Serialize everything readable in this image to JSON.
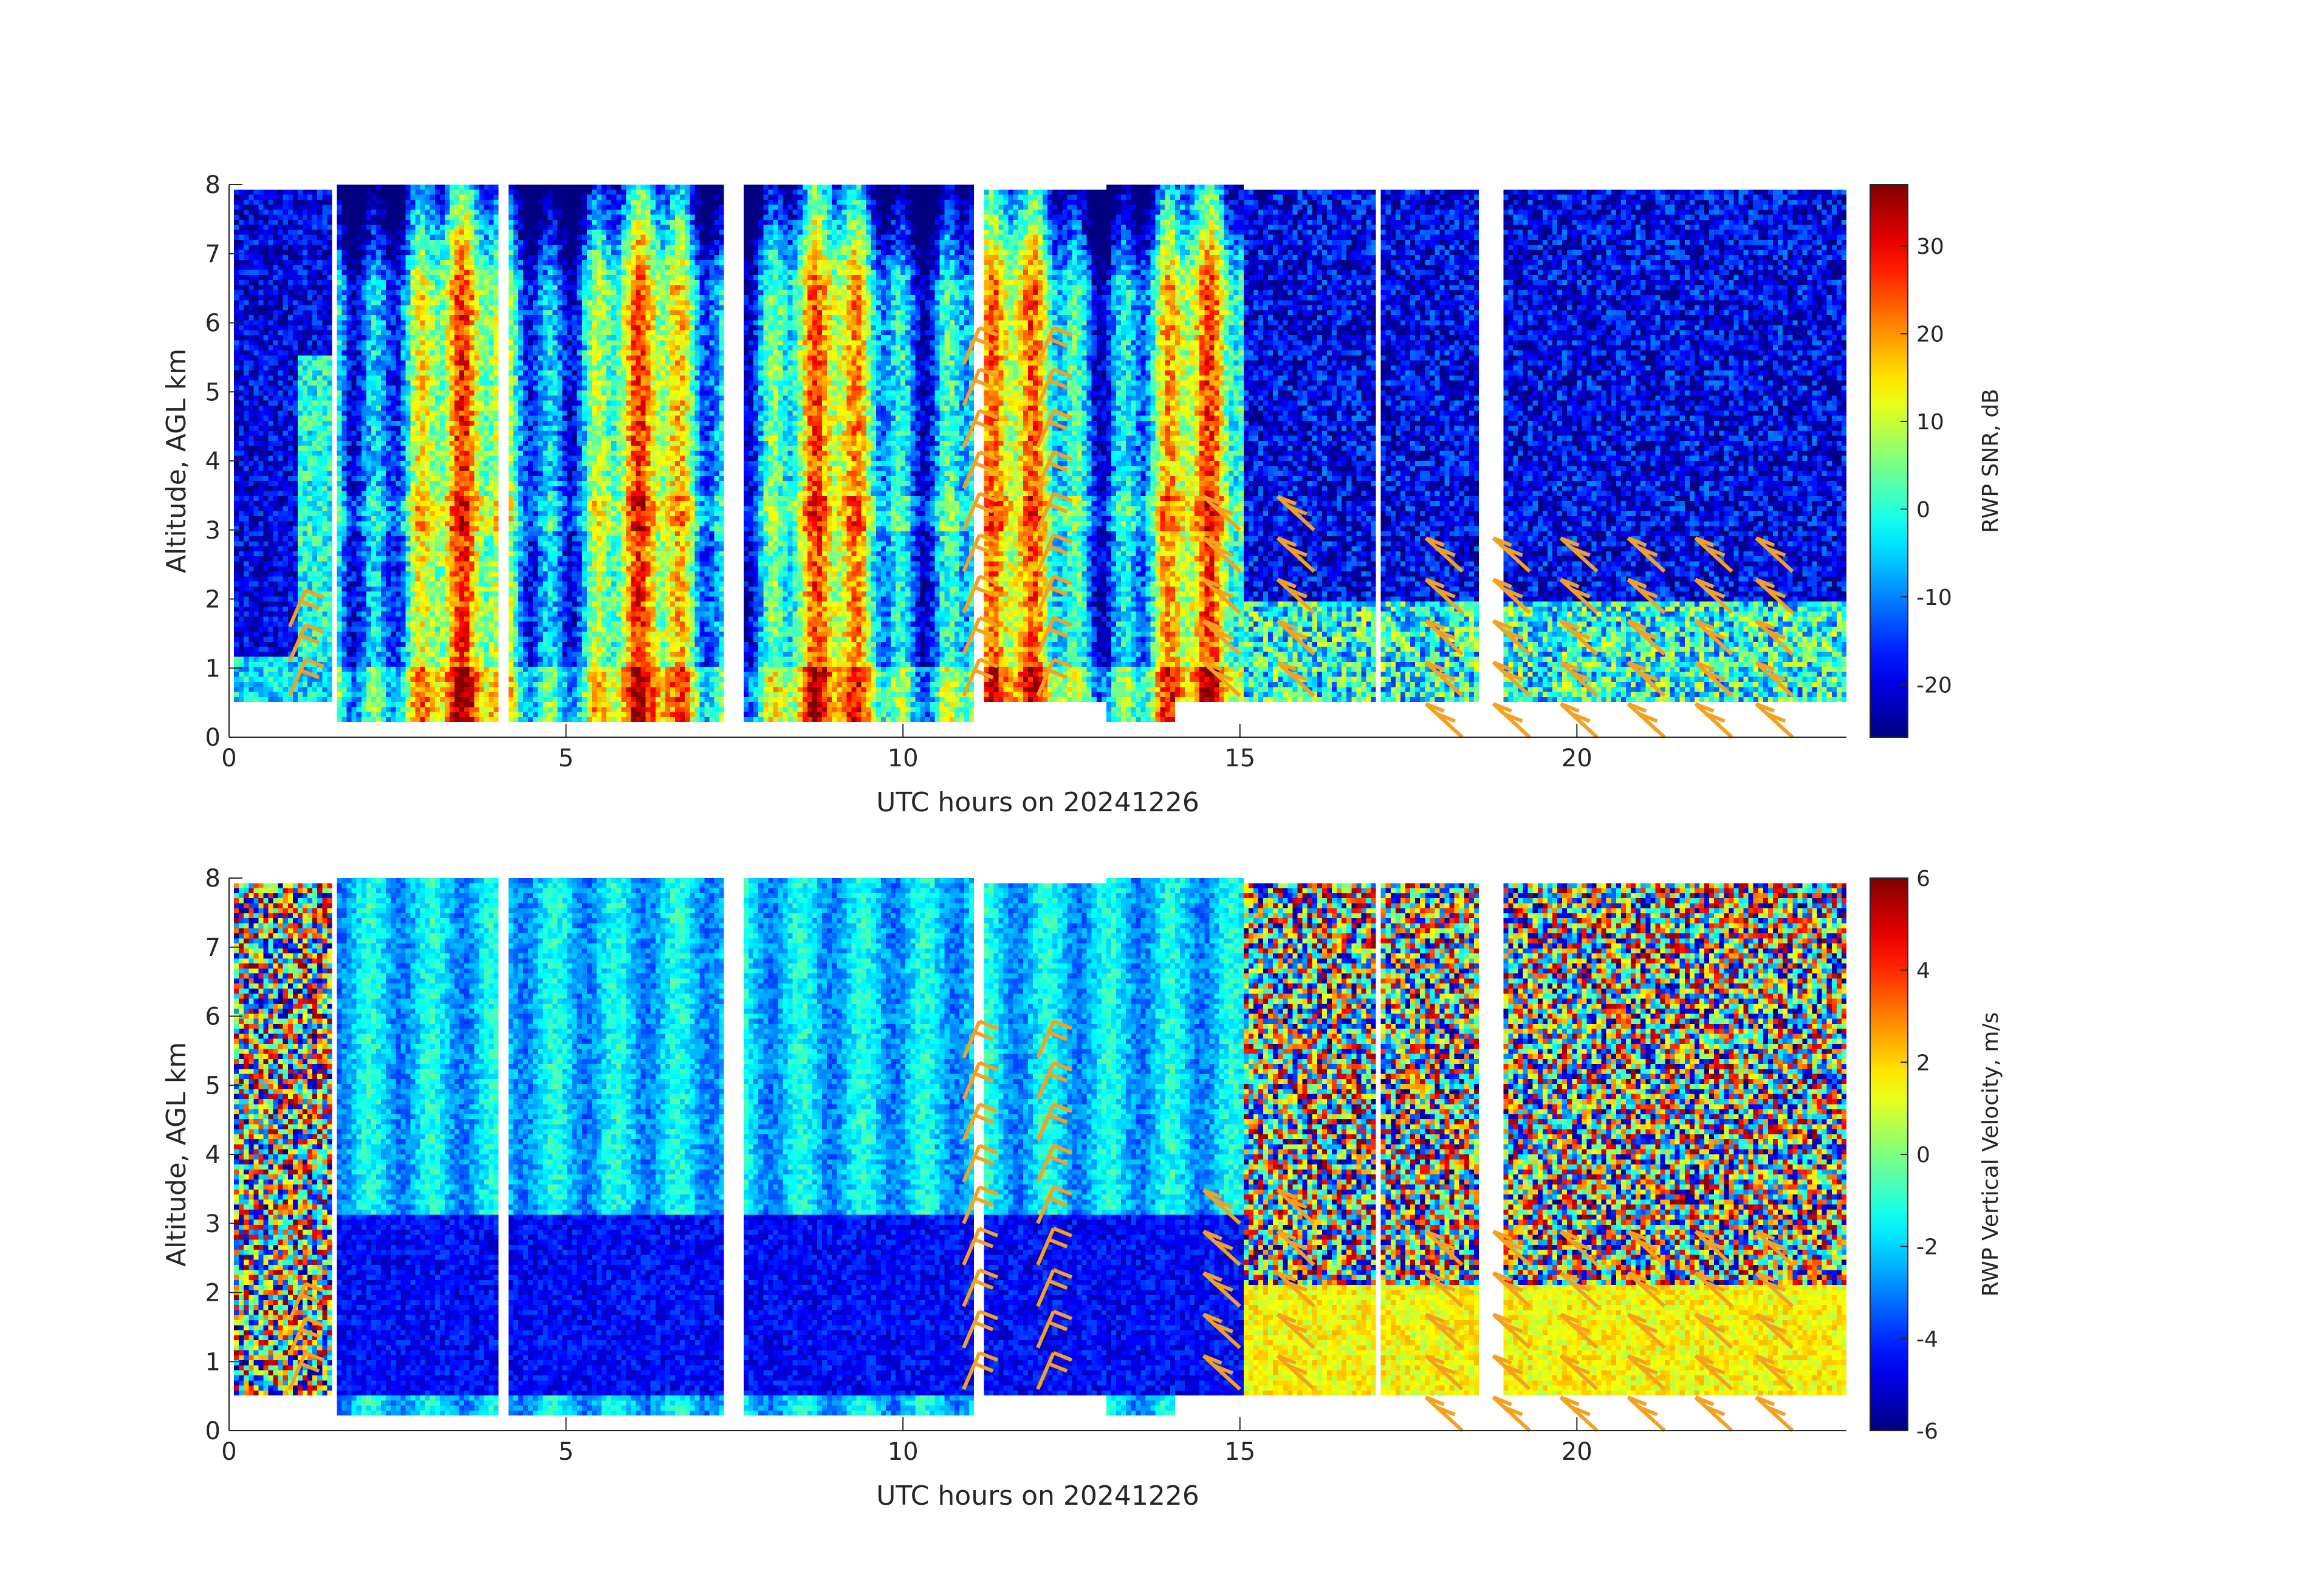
{
  "chart_data": [
    {
      "type": "heatmap",
      "xlabel": "UTC hours on 20241226",
      "ylabel": "Altitude, AGL km",
      "xlim": [
        0,
        24
      ],
      "ylim": [
        0,
        8
      ],
      "xticks": [
        0,
        5,
        10,
        15,
        20
      ],
      "yticks": [
        0,
        1,
        2,
        3,
        4,
        5,
        6,
        7,
        8
      ],
      "colorbar": {
        "label": "RWP SNR, dB",
        "range": [
          -26,
          37
        ],
        "ticks": [
          -20,
          -10,
          0,
          10,
          20,
          30
        ],
        "colormap": "jet"
      },
      "overlay": "wind barbs (orange) at ~0.5-5.5 km, roughly hourly",
      "barb_color": "#f5a020",
      "data_gaps_hours": [
        [
          1.5,
          1.55
        ],
        [
          4.0,
          4.1
        ],
        [
          7.3,
          7.6
        ],
        [
          11.0,
          11.15
        ],
        [
          17.0,
          17.05
        ],
        [
          18.5,
          18.9
        ]
      ]
    },
    {
      "type": "heatmap",
      "xlabel": "UTC hours on 20241226",
      "ylabel": "Altitude, AGL km",
      "xlim": [
        0,
        24
      ],
      "ylim": [
        0,
        8
      ],
      "xticks": [
        0,
        5,
        10,
        15,
        20
      ],
      "yticks": [
        0,
        1,
        2,
        3,
        4,
        5,
        6,
        7,
        8
      ],
      "colorbar": {
        "label": "RWP Vertical Velocity, m/s",
        "range": [
          -6,
          6
        ],
        "ticks": [
          -6,
          -4,
          -2,
          0,
          2,
          4,
          6
        ],
        "colormap": "jet"
      },
      "overlay": "wind barbs (orange) at ~0.5-5.5 km, roughly hourly",
      "barb_color": "#f5a020"
    }
  ]
}
